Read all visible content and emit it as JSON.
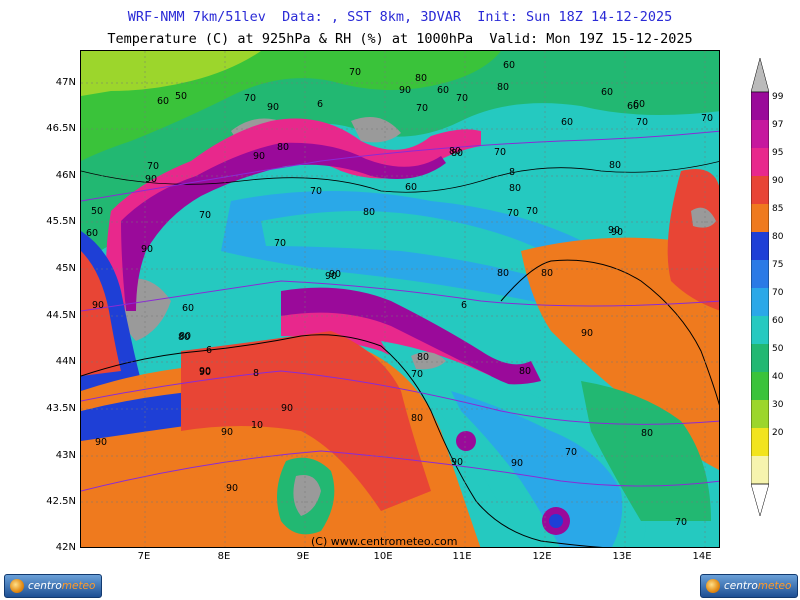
{
  "header": {
    "line1": "WRF-NMM 7km/51lev  Data: , SST 8km, 3DVAR  Init: Sun 18Z 14-12-2025",
    "line2": "Temperature (C) at 925hPa & RH (%) at 1000hPa  Valid: Mon 19Z 15-12-2025"
  },
  "map": {
    "lat_labels": [
      "47N",
      "46.5N",
      "46N",
      "45.5N",
      "45N",
      "44.5N",
      "44N",
      "43.5N",
      "43N",
      "42.5N",
      "42N"
    ],
    "lon_labels": [
      "7E",
      "8E",
      "9E",
      "10E",
      "11E",
      "12E",
      "13E",
      "14E"
    ],
    "copyright": "(C) www.centrometeo.com",
    "rh_contour_labels": [
      "70",
      "80",
      "90",
      "60",
      "50",
      "70",
      "60",
      "60",
      "90",
      "80",
      "70",
      "70",
      "60",
      "60",
      "90",
      "80",
      "90",
      "80",
      "60",
      "70",
      "90",
      "80",
      "70",
      "90",
      "60",
      "90",
      "80",
      "50",
      "90",
      "70",
      "80",
      "70",
      "70",
      "60",
      "60",
      "80",
      "90",
      "90",
      "70",
      "90",
      "80",
      "60",
      "90",
      "80",
      "90",
      "80",
      "80",
      "90",
      "90",
      "90",
      "70",
      "80",
      "80",
      "70",
      "80",
      "80",
      "90",
      "70",
      "90",
      "90",
      "70",
      "70",
      "70"
    ],
    "temp_contour_labels": [
      "6",
      "6",
      "6",
      "8",
      "8",
      "10"
    ]
  },
  "legend": {
    "labels": [
      "99",
      "97",
      "95",
      "90",
      "85",
      "80",
      "75",
      "70",
      "60",
      "50",
      "40",
      "30",
      "20"
    ],
    "colors": [
      "#9a0a9a",
      "#c6189e",
      "#e8288c",
      "#e84535",
      "#ef7a1e",
      "#1e3fd6",
      "#2b7ae6",
      "#2aa8e8",
      "#25c9c0",
      "#22b872",
      "#3ac33a",
      "#9cd62c",
      "#f2e41e",
      "#f6f4ae",
      "#ffffff"
    ]
  },
  "logos": {
    "left": {
      "part1": "centro",
      "part2": "meteo"
    },
    "right": {
      "part1": "centro",
      "part2": "meteo"
    }
  }
}
